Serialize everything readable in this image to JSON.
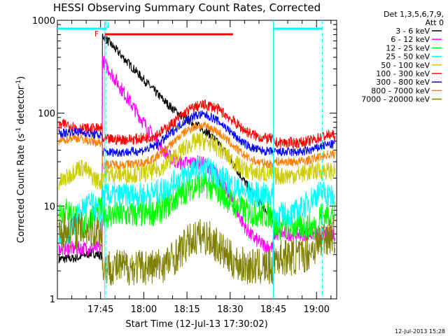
{
  "chart_data": {
    "type": "line",
    "title": "HESSI Observing Summary Count Rates, Corrected",
    "xlabel": "Start Time (12-Jul-13 17:30:02)",
    "ylabel_main": "Corrected Count Rate (s",
    "ylabel_sup1": "-1",
    "ylabel_mid": " detector",
    "ylabel_sup2": "-1",
    "ylabel_end": ")",
    "yscale": "log",
    "ylim": [
      1,
      1000
    ],
    "xlim": [
      "17:30",
      "19:07"
    ],
    "y_ticks": [
      {
        "v": 1,
        "label": "1"
      },
      {
        "v": 10,
        "label": "10"
      },
      {
        "v": 100,
        "label": "100"
      },
      {
        "v": 1000,
        "label": "1000"
      }
    ],
    "x_ticks": [
      {
        "t": 15,
        "label": "17:45"
      },
      {
        "t": 30,
        "label": "18:00"
      },
      {
        "t": 45,
        "label": "18:15"
      },
      {
        "t": 60,
        "label": "18:30"
      },
      {
        "t": 75,
        "label": "18:45"
      },
      {
        "t": 90,
        "label": "19:00"
      }
    ],
    "legend_header": [
      "Det 1,3,5,6,7,9,",
      "Att 0"
    ],
    "flare_marker": {
      "label": "F",
      "start": 16.5,
      "end": 61
    },
    "day_night": [
      {
        "start": 0,
        "end": 17,
        "label": "N"
      },
      {
        "start": 75,
        "end": 92
      }
    ],
    "series": [
      {
        "name": "3 - 6 keV",
        "color": "#000000"
      },
      {
        "name": "6 - 12 keV",
        "color": "#ff00ff"
      },
      {
        "name": "12 - 25 keV",
        "color": "#00ff00"
      },
      {
        "name": "25 - 50 keV",
        "color": "#00ffff"
      },
      {
        "name": "50 - 100 keV",
        "color": "#cccc00"
      },
      {
        "name": "100 - 300 keV",
        "color": "#ff0000"
      },
      {
        "name": "300 - 800 keV",
        "color": "#0000ff"
      },
      {
        "name": "800 - 7000 keV",
        "color": "#ff8000"
      },
      {
        "name": "7000 - 20000 keV",
        "color": "#808000"
      }
    ]
  },
  "timestamp": "12-Jul-2013 15:28"
}
